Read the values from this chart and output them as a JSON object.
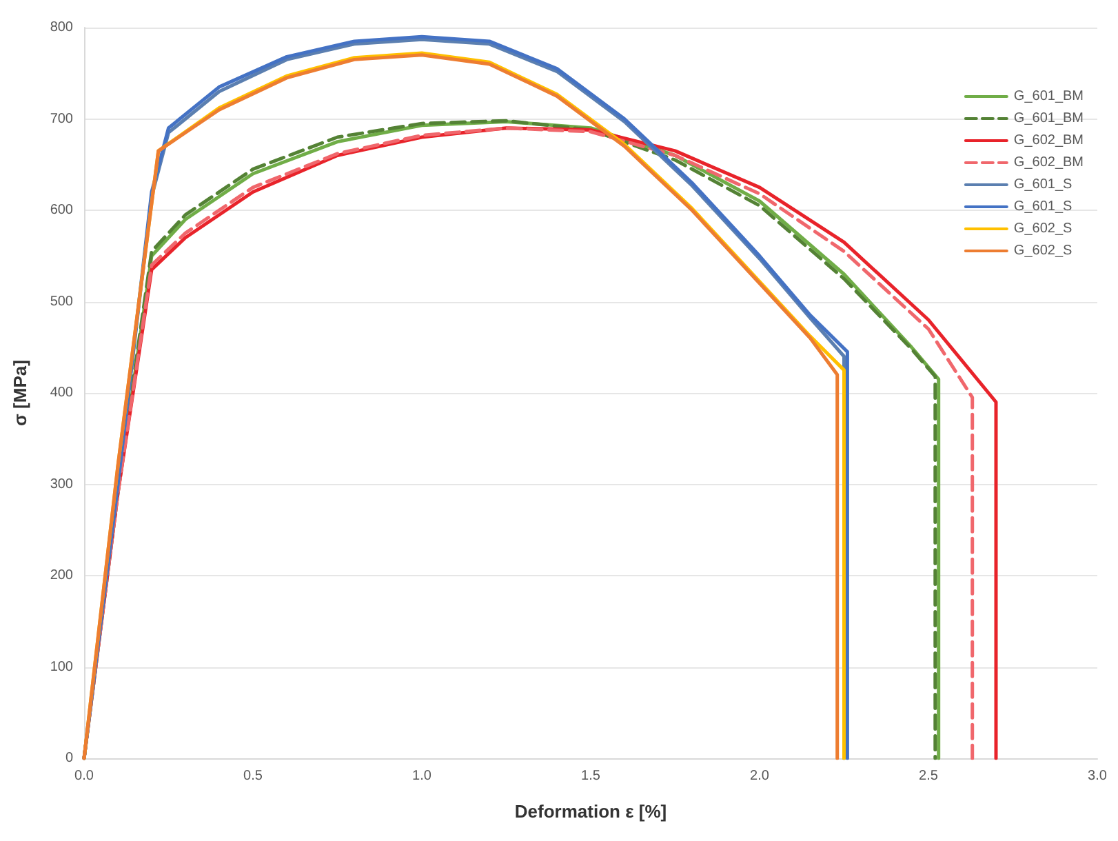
{
  "chart_data": {
    "type": "line",
    "xlabel": "Deformation ε [%]",
    "ylabel": "σ [MPa]",
    "xlim": [
      0,
      3
    ],
    "xticks": [
      {
        "value": 0,
        "label": "0.0"
      },
      {
        "value": 0.5,
        "label": "0.5"
      },
      {
        "value": 1,
        "label": "1.0"
      },
      {
        "value": 1.5,
        "label": "1.5"
      },
      {
        "value": 2,
        "label": "2.0"
      },
      {
        "value": 2.5,
        "label": "2.5"
      },
      {
        "value": 3,
        "label": "3.0"
      }
    ],
    "ylim": [
      0,
      800
    ],
    "yticks": [
      0,
      100,
      200,
      300,
      400,
      500,
      600,
      700,
      800
    ],
    "grid": "y",
    "legend": "top right",
    "marker": "none",
    "line_style": "solid",
    "series": [
      {
        "name": "G_601_BM",
        "color": "#70ad47",
        "x": [
          0,
          0.1,
          0.2,
          0.3,
          0.5,
          0.75,
          1.0,
          1.25,
          1.5,
          1.75,
          2.0,
          2.25,
          2.45,
          2.53,
          2.53
        ],
        "values": [
          0,
          290,
          550,
          590,
          640,
          675,
          693,
          697,
          690,
          660,
          610,
          530,
          450,
          415,
          0
        ]
      },
      {
        "name": "G_601_BM",
        "color": "#548235",
        "line_style": "dashed",
        "x": [
          0,
          0.1,
          0.2,
          0.3,
          0.5,
          0.75,
          1.0,
          1.25,
          1.5,
          1.75,
          2.0,
          2.25,
          2.45,
          2.52,
          2.52
        ],
        "values": [
          0,
          295,
          555,
          595,
          645,
          680,
          695,
          698,
          688,
          655,
          605,
          525,
          448,
          418,
          0
        ]
      },
      {
        "name": "G_602_BM",
        "color": "#e8232a",
        "x": [
          0,
          0.1,
          0.2,
          0.3,
          0.5,
          0.75,
          1.0,
          1.25,
          1.5,
          1.75,
          2.0,
          2.25,
          2.5,
          2.7,
          2.7
        ],
        "values": [
          0,
          290,
          535,
          570,
          620,
          660,
          680,
          690,
          688,
          665,
          625,
          565,
          480,
          390,
          0
        ]
      },
      {
        "name": "G_602_BM",
        "color": "#f0676c",
        "line_style": "dashed",
        "x": [
          0,
          0.1,
          0.2,
          0.3,
          0.5,
          0.75,
          1.0,
          1.25,
          1.5,
          1.75,
          2.0,
          2.25,
          2.5,
          2.63,
          2.63
        ],
        "values": [
          0,
          290,
          540,
          575,
          625,
          662,
          682,
          690,
          686,
          660,
          618,
          555,
          470,
          395,
          0
        ]
      },
      {
        "name": "G_601_S",
        "color": "#5b7fb0",
        "x": [
          0,
          0.1,
          0.2,
          0.25,
          0.4,
          0.6,
          0.8,
          1.0,
          1.2,
          1.4,
          1.6,
          1.8,
          2.0,
          2.15,
          2.25,
          2.25
        ],
        "values": [
          0,
          300,
          615,
          685,
          730,
          765,
          782,
          787,
          782,
          752,
          697,
          627,
          547,
          482,
          440,
          0
        ]
      },
      {
        "name": "G_601_S",
        "color": "#4472c4",
        "x": [
          0,
          0.1,
          0.2,
          0.25,
          0.4,
          0.6,
          0.8,
          1.0,
          1.2,
          1.4,
          1.6,
          1.8,
          2.0,
          2.15,
          2.26,
          2.26
        ],
        "values": [
          0,
          300,
          620,
          690,
          735,
          768,
          785,
          790,
          785,
          755,
          700,
          630,
          550,
          485,
          445,
          0
        ]
      },
      {
        "name": "G_602_S",
        "color": "#ffc000",
        "x": [
          0,
          0.1,
          0.22,
          0.4,
          0.6,
          0.8,
          1.0,
          1.2,
          1.4,
          1.6,
          1.8,
          2.0,
          2.15,
          2.25,
          2.25
        ],
        "values": [
          0,
          320,
          665,
          712,
          747,
          767,
          772,
          762,
          727,
          672,
          602,
          522,
          462,
          425,
          0
        ]
      },
      {
        "name": "G_602_S",
        "color": "#ed7d31",
        "x": [
          0,
          0.1,
          0.22,
          0.4,
          0.6,
          0.8,
          1.0,
          1.2,
          1.4,
          1.6,
          1.8,
          2.0,
          2.15,
          2.23,
          2.23
        ],
        "values": [
          0,
          320,
          665,
          710,
          745,
          765,
          770,
          760,
          725,
          670,
          600,
          520,
          460,
          420,
          0
        ]
      }
    ]
  }
}
